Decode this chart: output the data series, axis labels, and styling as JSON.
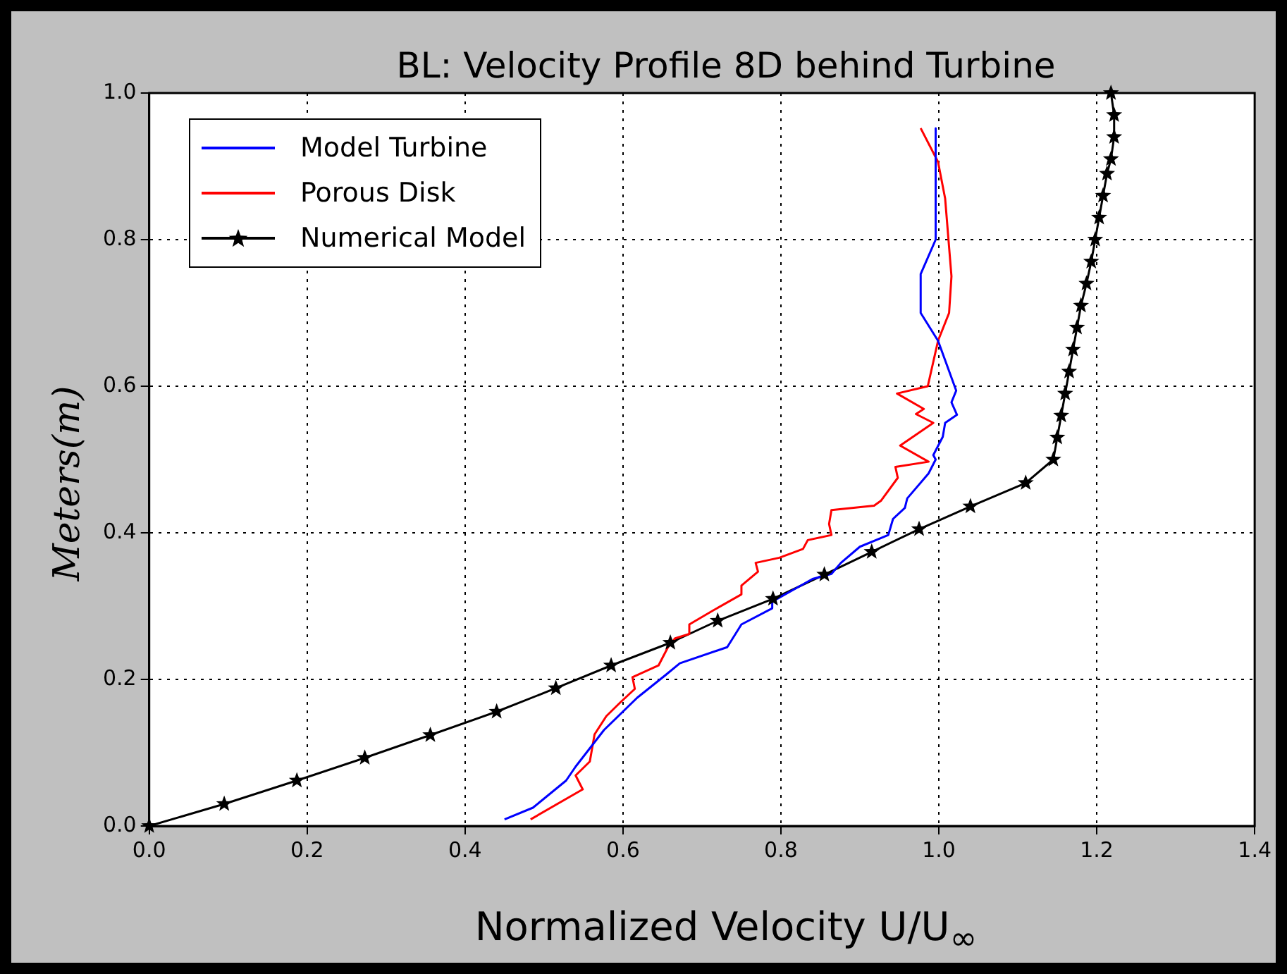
{
  "chart_data": {
    "type": "line",
    "title": "BL: Velocity Profile 8D behind Turbine",
    "xlabel": "Normalized Velocity U/U$_{∞}$",
    "ylabel": "Meters(m)",
    "xlim": [
      0,
      1.4
    ],
    "ylim": [
      0,
      1
    ],
    "xticks": [
      {
        "value": 0,
        "label": "0.0"
      },
      {
        "value": 0.2,
        "label": "0.2"
      },
      {
        "value": 0.4,
        "label": "0.4"
      },
      {
        "value": 0.6,
        "label": "0.6"
      },
      {
        "value": 0.8,
        "label": "0.8"
      },
      {
        "value": 1,
        "label": "1.0"
      },
      {
        "value": 1.2,
        "label": "1.2"
      },
      {
        "value": 1.4,
        "label": "1.4"
      }
    ],
    "yticks": [
      {
        "value": 0,
        "label": "0.0"
      },
      {
        "value": 0.2,
        "label": "0.2"
      },
      {
        "value": 0.4,
        "label": "0.4"
      },
      {
        "value": 0.6,
        "label": "0.6"
      },
      {
        "value": 0.8,
        "label": "0.8"
      },
      {
        "value": 1,
        "label": "1.0"
      }
    ],
    "grid": true,
    "legend": "top left",
    "series": [
      {
        "name": "Model Turbine",
        "color": "#0000ff",
        "marker": "none",
        "x": [
          0.996,
          0.996,
          0.977,
          0.977,
          0.999,
          1.022,
          1.016,
          1.023,
          1.008,
          1.005,
          0.993,
          0.996,
          0.987,
          0.96,
          0.957,
          0.942,
          0.936,
          0.9,
          0.876,
          0.864,
          0.84,
          0.789,
          0.789,
          0.75,
          0.732,
          0.672,
          0.654,
          0.618,
          0.576,
          0.54,
          0.528,
          0.486,
          0.45
        ],
        "values": [
          0.952,
          0.8,
          0.753,
          0.7,
          0.662,
          0.594,
          0.578,
          0.561,
          0.55,
          0.531,
          0.506,
          0.5,
          0.481,
          0.447,
          0.434,
          0.419,
          0.397,
          0.381,
          0.359,
          0.344,
          0.337,
          0.306,
          0.297,
          0.275,
          0.244,
          0.222,
          0.206,
          0.175,
          0.131,
          0.081,
          0.062,
          0.025,
          0.009
        ]
      },
      {
        "name": "Porous Disk",
        "color": "#ff0000",
        "marker": "none",
        "x": [
          0.977,
          0.999,
          1.008,
          1.016,
          1.013,
          0.999,
          0.986,
          0.947,
          0.981,
          0.971,
          0.993,
          0.951,
          0.987,
          0.945,
          0.948,
          0.927,
          0.918,
          0.864,
          0.861,
          0.864,
          0.834,
          0.828,
          0.798,
          0.768,
          0.771,
          0.75,
          0.75,
          0.714,
          0.684,
          0.684,
          0.666,
          0.657,
          0.645,
          0.612,
          0.615,
          0.597,
          0.579,
          0.564,
          0.558,
          0.54,
          0.549,
          0.483
        ],
        "values": [
          0.952,
          0.906,
          0.856,
          0.75,
          0.7,
          0.662,
          0.6,
          0.59,
          0.569,
          0.562,
          0.55,
          0.519,
          0.497,
          0.49,
          0.475,
          0.444,
          0.437,
          0.431,
          0.412,
          0.397,
          0.39,
          0.378,
          0.366,
          0.359,
          0.347,
          0.328,
          0.316,
          0.294,
          0.275,
          0.262,
          0.256,
          0.244,
          0.219,
          0.203,
          0.187,
          0.169,
          0.15,
          0.125,
          0.088,
          0.069,
          0.05,
          0.009
        ]
      },
      {
        "name": "Numerical Model",
        "color": "#000000",
        "marker": "star",
        "x": [
          0,
          0.095,
          0.187,
          0.273,
          0.356,
          0.44,
          0.515,
          0.585,
          0.66,
          0.72,
          0.79,
          0.855,
          0.915,
          0.975,
          1.04,
          1.11,
          1.145,
          1.15,
          1.155,
          1.16,
          1.165,
          1.17,
          1.175,
          1.18,
          1.187,
          1.193,
          1.198,
          1.203,
          1.208,
          1.213,
          1.218,
          1.222,
          1.222,
          1.218
        ],
        "values": [
          0,
          0.03,
          0.062,
          0.093,
          0.124,
          0.156,
          0.188,
          0.219,
          0.25,
          0.28,
          0.31,
          0.343,
          0.374,
          0.405,
          0.436,
          0.468,
          0.5,
          0.53,
          0.56,
          0.59,
          0.62,
          0.65,
          0.68,
          0.71,
          0.74,
          0.77,
          0.8,
          0.83,
          0.86,
          0.89,
          0.91,
          0.94,
          0.97,
          1.0
        ]
      }
    ]
  }
}
